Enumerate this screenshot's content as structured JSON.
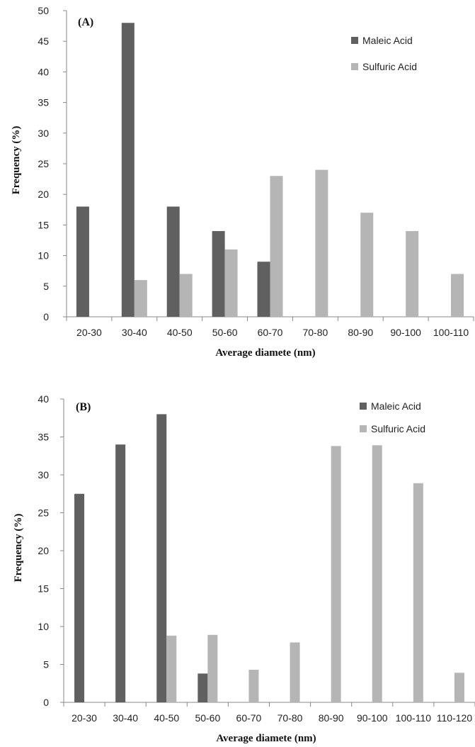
{
  "chart_data": [
    {
      "type": "bar",
      "panel_label": "(A)",
      "categories": [
        "20-30",
        "30-40",
        "40-50",
        "50-60",
        "60-70",
        "70-80",
        "80-90",
        "90-100",
        "100-110"
      ],
      "series": [
        {
          "name": "Maleic Acid",
          "color": "#606060",
          "values": [
            18,
            48,
            18,
            14,
            9,
            0,
            0,
            0,
            0
          ]
        },
        {
          "name": "Sulfuric Acid",
          "color": "#b5b5b5",
          "values": [
            0,
            6,
            7,
            11,
            23,
            24,
            17,
            14,
            7
          ]
        }
      ],
      "xlabel": "Average diamete (nm)",
      "ylabel": "Frequency (%)",
      "ylim": [
        0,
        50
      ],
      "yticks": [
        0,
        5,
        10,
        15,
        20,
        25,
        30,
        35,
        40,
        45,
        50
      ],
      "legend_position": "top-right",
      "grid": false
    },
    {
      "type": "bar",
      "panel_label": "(B)",
      "categories": [
        "20-30",
        "30-40",
        "40-50",
        "50-60",
        "60-70",
        "70-80",
        "80-90",
        "90-100",
        "100-110",
        "110-120"
      ],
      "series": [
        {
          "name": "Maleic Acid",
          "color": "#606060",
          "values": [
            27.5,
            34,
            38,
            3.8,
            0,
            0,
            0,
            0,
            0,
            0
          ]
        },
        {
          "name": "Sulfuric Acid",
          "color": "#b5b5b5",
          "values": [
            0,
            0,
            8.8,
            8.9,
            4.3,
            7.9,
            33.8,
            33.9,
            28.9,
            3.9
          ]
        }
      ],
      "xlabel": "Average diamete (nm)",
      "ylabel": "Frequency (%)",
      "ylim": [
        0,
        40
      ],
      "yticks": [
        0,
        5,
        10,
        15,
        20,
        25,
        30,
        35,
        40
      ],
      "legend_position": "top-right",
      "grid": false
    }
  ]
}
